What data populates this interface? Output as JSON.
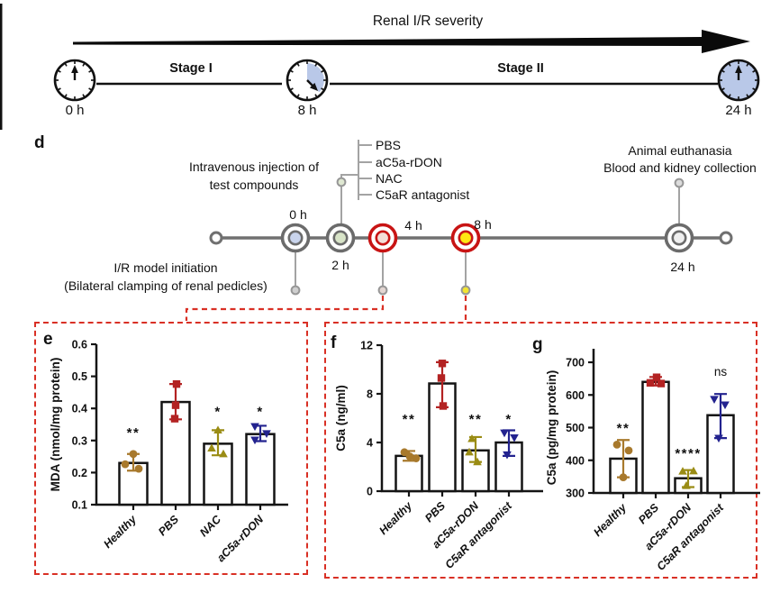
{
  "figure": {
    "top": {
      "title": "Renal I/R severity",
      "stages": [
        "Stage I",
        "Stage II"
      ],
      "clock_labels": [
        "0 h",
        "8 h",
        "24 h"
      ]
    },
    "panel_d": {
      "label": "d",
      "injection_caption": [
        "Intravenous injection of",
        "test compounds"
      ],
      "compounds": [
        "PBS",
        "aC5a-rDON",
        "NAC",
        "C5aR antagonist"
      ],
      "euthanasia_caption": [
        "Animal euthanasia",
        "Blood and kidney collection"
      ],
      "ir_caption": [
        "I/R model initiation",
        "(Bilateral clamping of renal pedicles)"
      ],
      "timepoint_labels": [
        "0 h",
        "2 h",
        "4 h",
        "8 h",
        "24 h"
      ],
      "node_fills": [
        "#c9d4ec",
        "#d8e4c8",
        "#f3ded8",
        "#ffe712",
        "#efefef"
      ],
      "node_rings": [
        "#6b6b6b",
        "#6b6b6b",
        "#c81414",
        "#c81414",
        "#6b6b6b"
      ]
    },
    "panel_labels": [
      "e",
      "f",
      "g"
    ]
  },
  "colors": {
    "dashed_red": "#d93025",
    "clock_blue": "#b9c8e8",
    "timeline_gray": "#707070",
    "connector_gray": "#a3a3a3",
    "group_colors": [
      "#a8792c",
      "#b32222",
      "#9a8c14",
      "#23238f"
    ]
  },
  "marker_shapes": [
    "circle",
    "square",
    "tri-up",
    "tri-down"
  ],
  "chart_data": [
    {
      "type": "bar",
      "panel": "e",
      "ylabel": "MDA (nmol/mg protein)",
      "ylim": [
        0.1,
        0.6
      ],
      "yticks": [
        0.1,
        0.2,
        0.3,
        0.4,
        0.5,
        0.6
      ],
      "ytick_labels": [
        "0.1",
        "0.2",
        "0.3",
        "0.4",
        "0.5",
        "0.6"
      ],
      "categories": [
        "Healthy",
        "PBS",
        "NAC",
        "aC5a-rDON"
      ],
      "values": [
        0.23,
        0.42,
        0.29,
        0.32
      ],
      "err_low": [
        0.206,
        0.366,
        0.254,
        0.298
      ],
      "err_high": [
        0.258,
        0.476,
        0.332,
        0.346
      ],
      "points": [
        [
          0.258,
          0.226,
          0.212
        ],
        [
          0.476,
          0.41,
          0.368
        ],
        [
          0.332,
          0.276,
          0.258
        ],
        [
          0.344,
          0.322,
          0.302
        ]
      ],
      "point_dx": [
        [
          0,
          -9,
          6
        ],
        [
          1,
          0,
          -1
        ],
        [
          0,
          -7,
          6
        ],
        [
          -6,
          7,
          -6
        ]
      ],
      "sig": [
        "**",
        "",
        "*",
        "*"
      ],
      "sig_y": [
        0.345,
        0,
        0.41,
        0.41
      ],
      "grid": false
    },
    {
      "type": "bar",
      "panel": "f",
      "ylabel": "C5a (ng/ml)",
      "ylim": [
        0,
        12
      ],
      "yticks": [
        0,
        4,
        8,
        12
      ],
      "ytick_labels": [
        "0",
        "4",
        "8",
        "12"
      ],
      "categories": [
        "Healthy",
        "PBS",
        "aC5a-rDON",
        "C5aR antagonist"
      ],
      "values": [
        2.9,
        8.85,
        3.35,
        4.0
      ],
      "err_low": [
        2.5,
        6.9,
        2.4,
        2.9
      ],
      "err_high": [
        3.3,
        10.6,
        4.45,
        5.0
      ],
      "points": [
        [
          3.2,
          2.85,
          2.7
        ],
        [
          10.5,
          9.3,
          7.0
        ],
        [
          4.3,
          3.2,
          2.4
        ],
        [
          4.8,
          4.4,
          3.0
        ]
      ],
      "point_dx": [
        [
          -5,
          1,
          8
        ],
        [
          0,
          -1,
          1
        ],
        [
          -4,
          -7,
          2
        ],
        [
          -5,
          6,
          -2
        ]
      ],
      "sig": [
        "**",
        "",
        "**",
        "*"
      ],
      "sig_y": [
        6.45,
        0,
        6.45,
        6.45
      ],
      "grid": false
    },
    {
      "type": "bar",
      "panel": "g",
      "ylabel": "C5a (pg/mg protein)",
      "ylim": [
        300,
        700
      ],
      "yticks": [
        300,
        400,
        500,
        600,
        700
      ],
      "ytick_labels": [
        "300",
        "400",
        "500",
        "600",
        "700"
      ],
      "categories": [
        "Healthy",
        "PBS",
        "aC5a-rDON",
        "C5aR antagonist"
      ],
      "values": [
        405,
        640,
        345,
        538
      ],
      "err_low": [
        348,
        629,
        318,
        468
      ],
      "err_high": [
        462,
        655,
        370,
        603
      ],
      "points": [
        [
          448,
          430,
          348
        ],
        [
          654,
          637,
          635
        ],
        [
          366,
          367,
          322
        ],
        [
          587,
          570,
          468
        ]
      ],
      "point_dx": [
        [
          -7,
          6,
          0
        ],
        [
          1,
          -6,
          6
        ],
        [
          -6,
          6,
          -2
        ],
        [
          -7,
          5,
          -2
        ]
      ],
      "sig": [
        "**",
        "",
        "****",
        "ns"
      ],
      "sig_y": [
        518,
        0,
        441,
        672
      ],
      "grid": false
    }
  ]
}
